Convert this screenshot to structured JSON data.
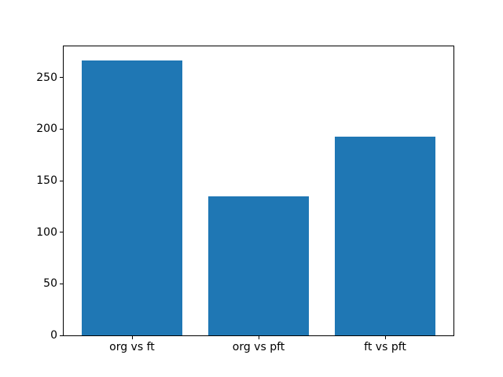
{
  "figure": {
    "background": "#ffffff",
    "axes_background": "#ffffff",
    "spine_color": "#000000",
    "tick_color": "#000000",
    "text_color": "#000000"
  },
  "chart_data": {
    "type": "bar",
    "title": "",
    "xlabel": "",
    "ylabel": "",
    "categories": [
      "org vs ft",
      "org vs pft",
      "ft vs pft"
    ],
    "values": [
      267,
      135,
      193
    ],
    "bar_color": "#1f77b4",
    "bar_width": 0.8,
    "ylim": [
      0,
      280.35
    ],
    "yticks": [
      0,
      50,
      100,
      150,
      200,
      250
    ],
    "xlim": [
      -0.54,
      2.54
    ],
    "grid": false,
    "legend": null
  }
}
